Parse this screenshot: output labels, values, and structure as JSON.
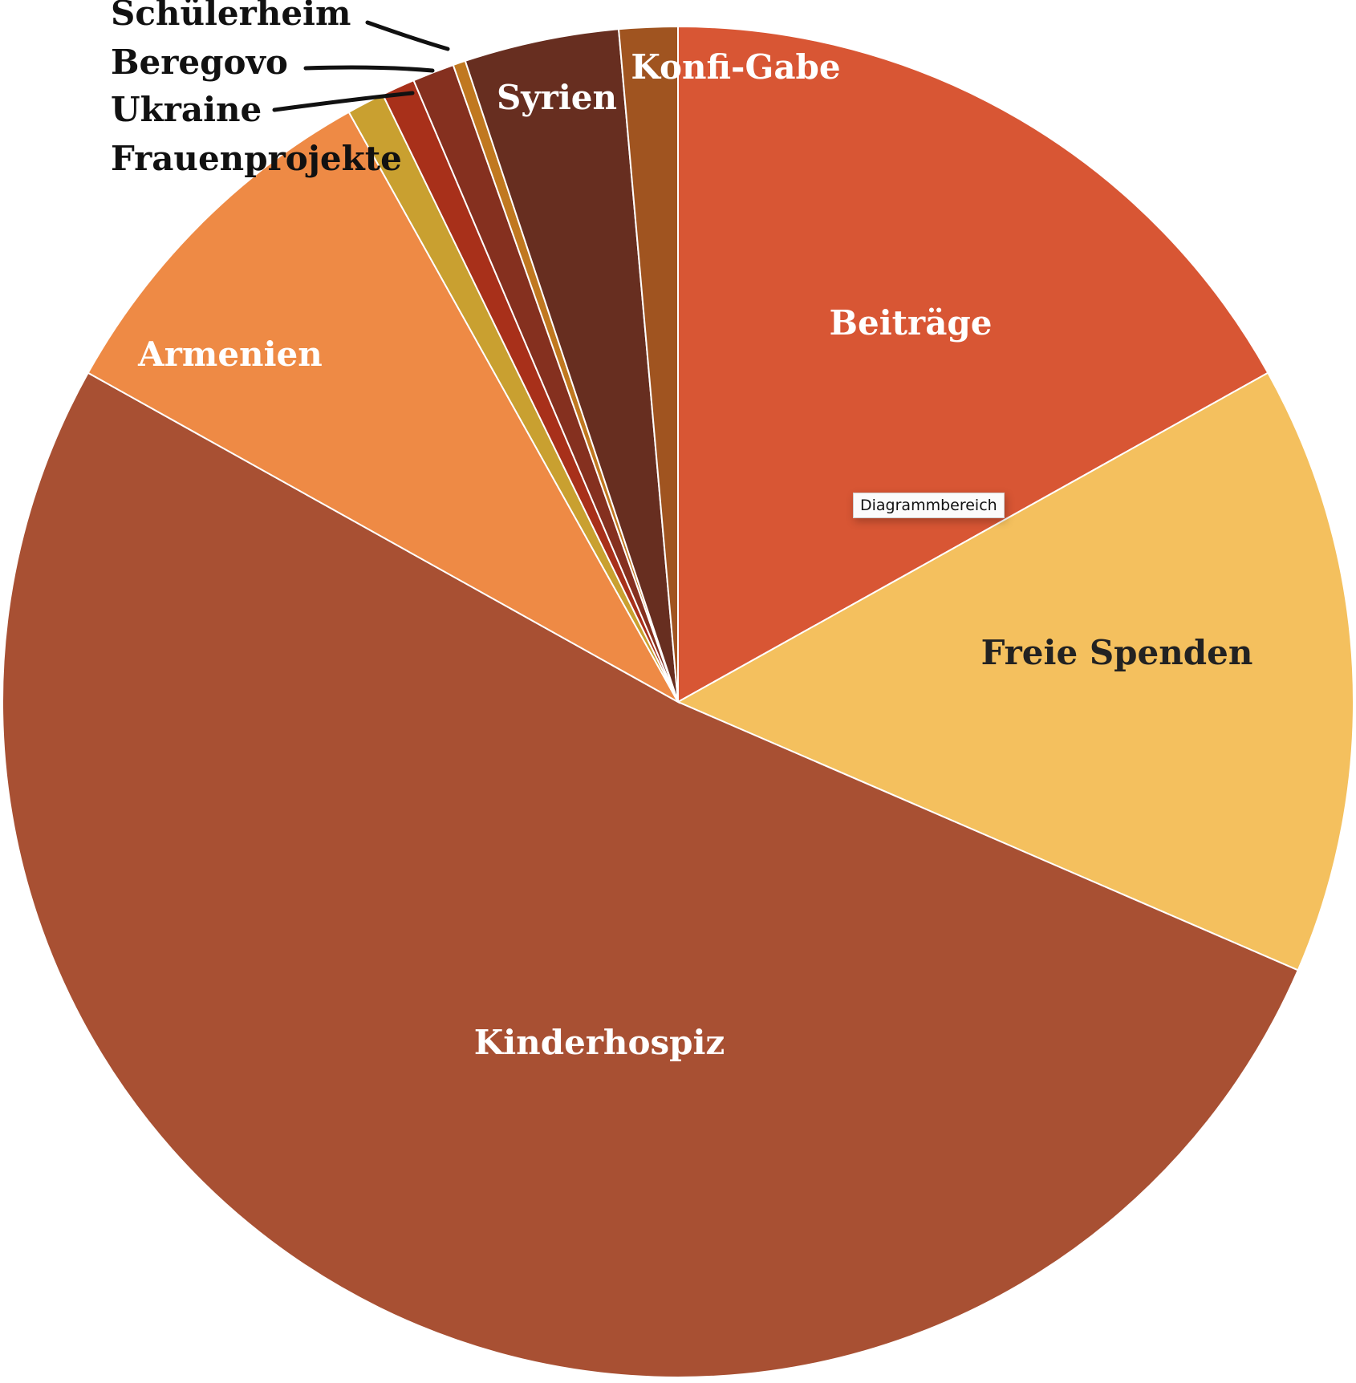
{
  "chart_data": {
    "type": "pie",
    "categories": [
      "Beiträge",
      "Freie Spenden",
      "Kinderhospiz",
      "Armenien",
      "Frauenprojekte",
      "Ukraine",
      "Beregovo",
      "Schülerheim",
      "Syrien",
      "Konfi-Gabe"
    ],
    "values": [
      16.9,
      14.6,
      51.6,
      8.8,
      0.9,
      0.8,
      1.0,
      0.3,
      3.7,
      1.4
    ],
    "colors": [
      "#d85634",
      "#f4c05e",
      "#a85033",
      "#ee8a45",
      "#c9a030",
      "#a8301a",
      "#85301f",
      "#c07820",
      "#672e20",
      "#a05420"
    ],
    "tooltip": "Diagrammbereich"
  }
}
